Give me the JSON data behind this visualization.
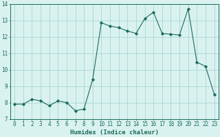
{
  "x": [
    0,
    1,
    2,
    3,
    4,
    5,
    6,
    7,
    8,
    9,
    10,
    11,
    12,
    13,
    14,
    15,
    16,
    17,
    18,
    19,
    20,
    21,
    22,
    23
  ],
  "y": [
    7.9,
    7.9,
    8.2,
    8.1,
    7.8,
    8.1,
    8.0,
    7.5,
    7.6,
    9.4,
    12.85,
    12.65,
    12.55,
    12.35,
    12.2,
    13.1,
    13.5,
    12.2,
    12.15,
    12.1,
    13.7,
    10.45,
    10.2,
    8.5
  ],
  "line_color": "#1a6b5a",
  "marker": "D",
  "marker_size": 2.2,
  "bg_color": "#d9f2f0",
  "grid_color": "#a0d0cc",
  "xlabel": "Humidex (Indice chaleur)",
  "ylabel": "",
  "xlim": [
    -0.5,
    23.5
  ],
  "ylim": [
    7,
    14
  ],
  "yticks": [
    7,
    8,
    9,
    10,
    11,
    12,
    13,
    14
  ],
  "xticks": [
    0,
    1,
    2,
    3,
    4,
    5,
    6,
    7,
    8,
    9,
    10,
    11,
    12,
    13,
    14,
    15,
    16,
    17,
    18,
    19,
    20,
    21,
    22,
    23
  ],
  "label_fontsize": 6.5,
  "tick_fontsize": 5.5
}
